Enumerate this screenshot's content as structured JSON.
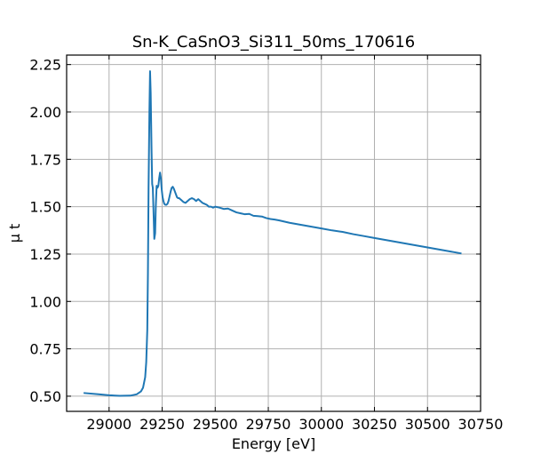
{
  "chart_data": {
    "type": "line",
    "title": "Sn-K_CaSnO3_Si311_50ms_170616",
    "xlabel": "Energy [eV]",
    "ylabel": "μ t",
    "xlim": [
      28800,
      30750
    ],
    "ylim": [
      0.42,
      2.3
    ],
    "xticks": [
      29000,
      29250,
      29500,
      29750,
      30000,
      30250,
      30500,
      30750
    ],
    "yticks": [
      0.5,
      0.75,
      1.0,
      1.25,
      1.5,
      1.75,
      2.0,
      2.25
    ],
    "grid": true,
    "series": [
      {
        "color": "#1f77b4",
        "x": [
          28880,
          28950,
          29000,
          29050,
          29100,
          29130,
          29150,
          29160,
          29170,
          29175,
          29180,
          29183,
          29186,
          29190,
          29193,
          29196,
          29200,
          29203,
          29206,
          29210,
          29213,
          29217,
          29220,
          29224,
          29228,
          29232,
          29236,
          29240,
          29244,
          29248,
          29252,
          29256,
          29260,
          29265,
          29270,
          29275,
          29280,
          29285,
          29290,
          29295,
          29300,
          29305,
          29310,
          29315,
          29320,
          29325,
          29330,
          29335,
          29340,
          29350,
          29360,
          29370,
          29380,
          29390,
          29400,
          29410,
          29420,
          29430,
          29440,
          29450,
          29460,
          29470,
          29480,
          29490,
          29500,
          29520,
          29540,
          29560,
          29580,
          29600,
          29620,
          29640,
          29660,
          29680,
          29700,
          29720,
          29740,
          29760,
          29780,
          29800,
          29850,
          29900,
          29950,
          30000,
          30050,
          30100,
          30150,
          30200,
          30250,
          30300,
          30350,
          30400,
          30450,
          30500,
          30550,
          30600,
          30660
        ],
        "y": [
          0.517,
          0.51,
          0.505,
          0.502,
          0.503,
          0.51,
          0.525,
          0.545,
          0.6,
          0.68,
          0.85,
          1.15,
          1.6,
          2.0,
          2.215,
          2.1,
          1.8,
          1.62,
          1.6,
          1.45,
          1.33,
          1.36,
          1.5,
          1.61,
          1.6,
          1.61,
          1.65,
          1.68,
          1.65,
          1.59,
          1.55,
          1.53,
          1.515,
          1.51,
          1.51,
          1.515,
          1.53,
          1.555,
          1.58,
          1.6,
          1.605,
          1.595,
          1.58,
          1.565,
          1.55,
          1.545,
          1.545,
          1.54,
          1.535,
          1.525,
          1.52,
          1.53,
          1.54,
          1.545,
          1.54,
          1.53,
          1.54,
          1.53,
          1.52,
          1.515,
          1.51,
          1.5,
          1.5,
          1.495,
          1.5,
          1.495,
          1.488,
          1.49,
          1.48,
          1.47,
          1.465,
          1.46,
          1.462,
          1.452,
          1.45,
          1.448,
          1.44,
          1.435,
          1.432,
          1.428,
          1.415,
          1.405,
          1.395,
          1.385,
          1.375,
          1.367,
          1.355,
          1.345,
          1.335,
          1.325,
          1.315,
          1.305,
          1.295,
          1.285,
          1.275,
          1.265,
          1.253
        ]
      }
    ]
  }
}
